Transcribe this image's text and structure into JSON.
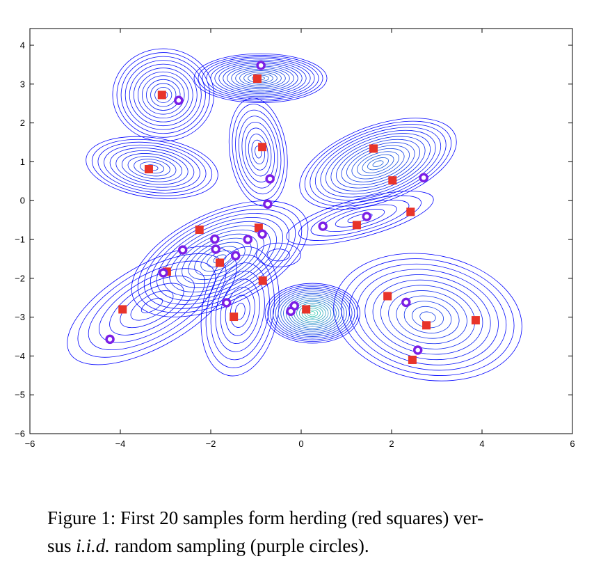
{
  "chart_data": {
    "type": "scatter",
    "title": "",
    "xlabel": "",
    "ylabel": "",
    "xlim": [
      -6,
      6
    ],
    "ylim": [
      -6,
      4.4
    ],
    "grid": false,
    "xticks": [
      "−6",
      "−4",
      "−2",
      "0",
      "2",
      "4",
      "6"
    ],
    "xtick_values": [
      -6,
      -4,
      -2,
      0,
      2,
      4,
      6
    ],
    "yticks": [
      "4",
      "3",
      "2",
      "1",
      "0",
      "−1",
      "−2",
      "−3",
      "−4",
      "−5",
      "−6"
    ],
    "ytick_values": [
      4,
      3,
      2,
      1,
      0,
      -1,
      -2,
      -3,
      -4,
      -5,
      -6
    ],
    "background": "density contour lines (blue to cyan-green at peaks)",
    "contour_components": [
      {
        "mean": [
          -3.05,
          2.72
        ],
        "sd": [
          0.8,
          0.85
        ],
        "rot": 0,
        "levels": 12,
        "peak": 0.2
      },
      {
        "mean": [
          -0.9,
          3.15
        ],
        "sd": [
          1.05,
          0.45
        ],
        "rot": 0,
        "levels": 16,
        "peak": 0.45
      },
      {
        "mean": [
          -3.3,
          0.85
        ],
        "sd": [
          1.05,
          0.55
        ],
        "rot": -8,
        "levels": 11,
        "peak": 0.25
      },
      {
        "mean": [
          -0.95,
          1.25
        ],
        "sd": [
          0.45,
          1.0
        ],
        "rot": 8,
        "levels": 9,
        "peak": 0.2
      },
      {
        "mean": [
          1.7,
          0.95
        ],
        "sd": [
          1.3,
          0.7
        ],
        "rot": 20,
        "levels": 15,
        "peak": 0.45
      },
      {
        "mean": [
          1.3,
          -0.45
        ],
        "sd": [
          1.2,
          0.35
        ],
        "rot": 15,
        "levels": 6,
        "peak": 0.1
      },
      {
        "mean": [
          -1.8,
          -1.5
        ],
        "sd": [
          1.5,
          0.85
        ],
        "rot": 25,
        "levels": 14,
        "peak": 0.35
      },
      {
        "mean": [
          -3.3,
          -2.7
        ],
        "sd": [
          1.5,
          0.75
        ],
        "rot": 30,
        "levels": 8,
        "peak": 0.1
      },
      {
        "mean": [
          -1.35,
          -2.85
        ],
        "sd": [
          0.6,
          1.2
        ],
        "rot": -10,
        "levels": 8,
        "peak": 0.1
      },
      {
        "mean": [
          0.25,
          -2.9
        ],
        "sd": [
          0.75,
          0.55
        ],
        "rot": 0,
        "levels": 18,
        "peak": 1.0
      },
      {
        "mean": [
          2.8,
          -3.0
        ],
        "sd": [
          1.5,
          1.15
        ],
        "rot": -10,
        "levels": 12,
        "peak": 0.3
      },
      {
        "mean": [
          -0.5,
          -1.4
        ],
        "sd": [
          0.35,
          0.22
        ],
        "rot": 0,
        "levels": 2,
        "peak": 0.05
      }
    ],
    "series": [
      {
        "name": "herding (red squares)",
        "marker": "square",
        "color": "#e8342a",
        "x": [
          -3.08,
          -0.97,
          -3.37,
          -0.86,
          1.6,
          2.02,
          2.42,
          1.23,
          -2.25,
          -0.94,
          -1.8,
          -2.97,
          -0.85,
          -3.95,
          -1.49,
          0.11,
          1.91,
          2.77,
          3.86,
          2.46
        ],
        "y": [
          2.72,
          3.14,
          0.81,
          1.38,
          1.34,
          0.52,
          -0.29,
          -0.63,
          -0.75,
          -0.7,
          -1.6,
          -1.83,
          -2.06,
          -2.8,
          -2.99,
          -2.8,
          -2.46,
          -3.21,
          -3.08,
          -4.1
        ]
      },
      {
        "name": "i.i.d. random sampling (purple circles)",
        "marker": "circle",
        "color": "#7b1fe6",
        "x": [
          -0.89,
          -2.71,
          -0.69,
          -0.74,
          2.71,
          1.45,
          0.48,
          -1.91,
          -0.86,
          -1.18,
          -2.62,
          -1.89,
          -1.45,
          -3.05,
          -1.65,
          -0.15,
          -0.23,
          2.32,
          2.58,
          -4.23
        ],
        "y": [
          3.48,
          2.58,
          0.56,
          -0.09,
          0.59,
          -0.41,
          -0.66,
          -0.99,
          -0.86,
          -1.0,
          -1.27,
          -1.25,
          -1.42,
          -1.86,
          -2.63,
          -2.71,
          -2.85,
          -2.62,
          -3.85,
          -3.57
        ]
      }
    ]
  },
  "caption": {
    "line1": "Figure 1: First 20 samples form herding (red squares) ver-",
    "line2_pre": "sus ",
    "line2_italic": "i.i.d.",
    "line2_post": " random sampling (purple circles)."
  }
}
